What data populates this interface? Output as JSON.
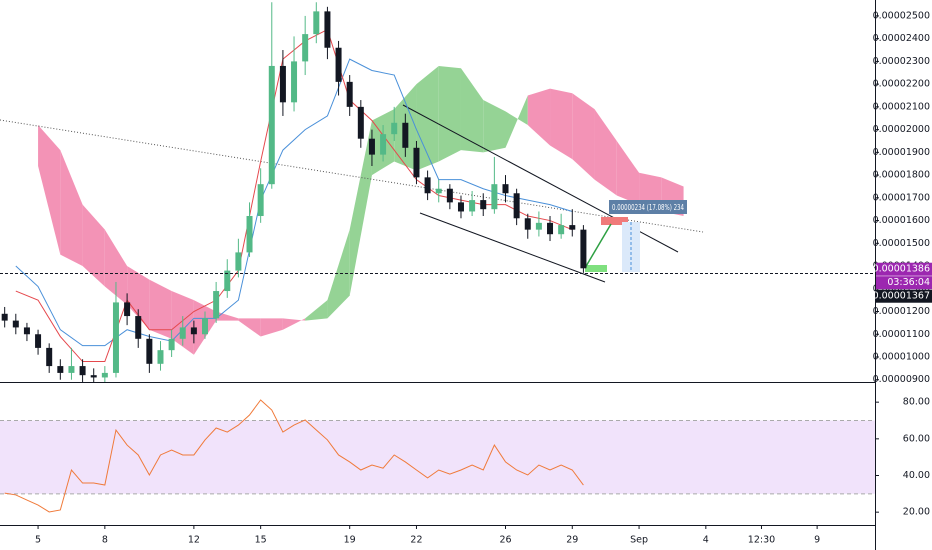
{
  "chart_data": [
    {
      "type": "candlestick",
      "xlim": [
        -1.71,
        37.6
      ],
      "ylim": [
        8.9e-06,
        2.57e-05
      ],
      "yticks": [
        {
          "value": 9e-06,
          "label": "0.00000900"
        },
        {
          "value": 1e-05,
          "label": "0.00001000"
        },
        {
          "value": 1.1e-05,
          "label": "0.00001100"
        },
        {
          "value": 1.2e-05,
          "label": "0.00001200"
        },
        {
          "value": 1.3e-05,
          "label": "0.00001300"
        },
        {
          "value": 1.4e-05,
          "label": "0.00001400"
        },
        {
          "value": 1.5e-05,
          "label": "0.00001500"
        },
        {
          "value": 1.6e-05,
          "label": "0.00001600"
        },
        {
          "value": 1.7e-05,
          "label": "0.00001700"
        },
        {
          "value": 1.8e-05,
          "label": "0.00001800"
        },
        {
          "value": 1.9e-05,
          "label": "0.00001900"
        },
        {
          "value": 2e-05,
          "label": "0.00002000"
        },
        {
          "value": 2.1e-05,
          "label": "0.00002100"
        },
        {
          "value": 2.2e-05,
          "label": "0.00002200"
        },
        {
          "value": 2.3e-05,
          "label": "0.00002300"
        },
        {
          "value": 2.4e-05,
          "label": "0.00002400"
        },
        {
          "value": 2.5e-05,
          "label": "0.00002500"
        }
      ],
      "grid": false,
      "up_color": "#53b987",
      "down_color": "#131722",
      "x": [
        -1.5,
        -1,
        -0.5,
        0,
        0.5,
        1,
        1.5,
        2,
        2.5,
        3,
        3.5,
        4,
        4.5,
        5,
        5.5,
        6,
        6.5,
        7,
        7.5,
        8,
        8.5,
        9,
        9.5,
        10,
        10.5,
        11,
        11.5,
        12,
        12.5,
        13,
        13.5,
        14,
        14.5,
        15,
        15.5,
        16,
        16.5,
        17,
        17.5,
        18,
        18.5,
        19,
        19.5,
        20,
        20.5,
        21,
        21.5,
        22,
        22.5,
        23,
        23.5,
        24,
        24.5
      ],
      "candles": [
        [
          1.19e-05,
          1.22e-05,
          1.13e-05,
          1.16e-05
        ],
        [
          1.16e-05,
          1.19e-05,
          1.1e-05,
          1.13e-05
        ],
        [
          1.13e-05,
          1.15e-05,
          1.07e-05,
          1.1e-05
        ],
        [
          1.1e-05,
          1.12e-05,
          1.01e-05,
          1.04e-05
        ],
        [
          1.04e-05,
          1.06e-05,
          9.3e-06,
          9.6e-06
        ],
        [
          9.6e-06,
          9.9e-06,
          9e-06,
          9.3e-06
        ],
        [
          9.3e-06,
          1.04e-05,
          9e-06,
          9.6e-06
        ],
        [
          9.6e-06,
          9.9e-06,
          8.9e-06,
          9.2e-06
        ],
        [
          9.2e-06,
          9.5e-06,
          8.9e-06,
          9.1e-06
        ],
        [
          9.1e-06,
          9.6e-06,
          8.9e-06,
          9.3e-06
        ],
        [
          9.3e-06,
          1.33e-05,
          9.1e-06,
          1.24e-05
        ],
        [
          1.24e-05,
          1.28e-05,
          1.14e-05,
          1.18e-05
        ],
        [
          1.18e-05,
          1.21e-05,
          1.04e-05,
          1.08e-05
        ],
        [
          1.08e-05,
          1.1e-05,
          9.3e-06,
          9.7e-06
        ],
        [
          9.7e-06,
          1.07e-05,
          9.4e-06,
          1.03e-05
        ],
        [
          1.03e-05,
          1.12e-05,
          1e-05,
          1.08e-05
        ],
        [
          1.08e-05,
          1.18e-05,
          1.05e-05,
          1.13e-05
        ],
        [
          1.13e-05,
          1.16e-05,
          1.06e-05,
          1.1e-05
        ],
        [
          1.1e-05,
          1.2e-05,
          1.08e-05,
          1.17e-05
        ],
        [
          1.17e-05,
          1.33e-05,
          1.15e-05,
          1.29e-05
        ],
        [
          1.29e-05,
          1.43e-05,
          1.26e-05,
          1.38e-05
        ],
        [
          1.38e-05,
          1.52e-05,
          1.35e-05,
          1.46e-05
        ],
        [
          1.46e-05,
          1.68e-05,
          1.44e-05,
          1.62e-05
        ],
        [
          1.62e-05,
          1.83e-05,
          1.59e-05,
          1.76e-05
        ],
        [
          1.76e-05,
          2.56e-05,
          1.74e-05,
          2.28e-05
        ],
        [
          2.28e-05,
          2.35e-05,
          2.06e-05,
          2.12e-05
        ],
        [
          2.12e-05,
          2.41e-05,
          2.08e-05,
          2.3e-05
        ],
        [
          2.3e-05,
          2.5e-05,
          2.24e-05,
          2.42e-05
        ],
        [
          2.42e-05,
          2.56e-05,
          2.38e-05,
          2.52e-05
        ],
        [
          2.52e-05,
          2.54e-05,
          2.31e-05,
          2.36e-05
        ],
        [
          2.36e-05,
          2.39e-05,
          2.15e-05,
          2.21e-05
        ],
        [
          2.21e-05,
          2.24e-05,
          2.06e-05,
          2.1e-05
        ],
        [
          2.1e-05,
          2.13e-05,
          1.92e-05,
          1.96e-05
        ],
        [
          1.96e-05,
          2e-05,
          1.84e-05,
          1.89e-05
        ],
        [
          1.89e-05,
          2.02e-05,
          1.86e-05,
          1.98e-05
        ],
        [
          1.98e-05,
          2.1e-05,
          1.95e-05,
          2.03e-05
        ],
        [
          2.03e-05,
          2.07e-05,
          1.88e-05,
          1.92e-05
        ],
        [
          1.92e-05,
          1.95e-05,
          1.76e-05,
          1.79e-05
        ],
        [
          1.79e-05,
          1.82e-05,
          1.69e-05,
          1.72e-05
        ],
        [
          1.72e-05,
          1.78e-05,
          1.68e-05,
          1.74e-05
        ],
        [
          1.74e-05,
          1.76e-05,
          1.65e-05,
          1.68e-05
        ],
        [
          1.68e-05,
          1.71e-05,
          1.61e-05,
          1.64e-05
        ],
        [
          1.64e-05,
          1.73e-05,
          1.62e-05,
          1.69e-05
        ],
        [
          1.69e-05,
          1.72e-05,
          1.62e-05,
          1.65e-05
        ],
        [
          1.65e-05,
          1.88e-05,
          1.63e-05,
          1.76e-05
        ],
        [
          1.76e-05,
          1.8e-05,
          1.68e-05,
          1.72e-05
        ],
        [
          1.72e-05,
          1.74e-05,
          1.58e-05,
          1.61e-05
        ],
        [
          1.61e-05,
          1.63e-05,
          1.52e-05,
          1.56e-05
        ],
        [
          1.56e-05,
          1.64e-05,
          1.53e-05,
          1.59e-05
        ],
        [
          1.59e-05,
          1.62e-05,
          1.51e-05,
          1.54e-05
        ],
        [
          1.54e-05,
          1.63e-05,
          1.52e-05,
          1.58e-05
        ],
        [
          1.58e-05,
          1.65e-05,
          1.53e-05,
          1.56e-05
        ],
        [
          1.56e-05,
          1.58e-05,
          1.37e-05,
          1.39e-05
        ]
      ],
      "cloud": {
        "x": [
          0,
          1,
          2,
          3,
          4,
          5,
          6,
          7,
          8,
          9,
          10,
          11,
          12,
          13,
          14,
          15,
          16,
          17,
          18,
          19,
          20,
          21,
          22,
          23,
          24,
          25,
          26,
          27,
          28,
          29
        ],
        "span_a": [
          1.84e-05,
          1.45e-05,
          1.4e-05,
          1.31e-05,
          1.23e-05,
          1.12e-05,
          1.08e-05,
          1.01e-05,
          1.16e-05,
          1.16e-05,
          1.09e-05,
          1.12e-05,
          1.17e-05,
          1.25e-05,
          1.56e-05,
          2.04e-05,
          2.09e-05,
          2.2e-05,
          2.28e-05,
          2.27e-05,
          2.13e-05,
          2.08e-05,
          2.02e-05,
          1.93e-05,
          1.87e-05,
          1.78e-05,
          1.71e-05,
          1.67e-05,
          1.64e-05,
          1.62e-05
        ],
        "span_b": [
          2.02e-05,
          1.91e-05,
          1.67e-05,
          1.56e-05,
          1.4e-05,
          1.34e-05,
          1.29e-05,
          1.25e-05,
          1.2e-05,
          1.17e-05,
          1.17e-05,
          1.17e-05,
          1.16e-05,
          1.17e-05,
          1.27e-05,
          1.8e-05,
          1.86e-05,
          1.82e-05,
          1.86e-05,
          1.91e-05,
          1.9e-05,
          1.92e-05,
          2.15e-05,
          2.18e-05,
          2.16e-05,
          2.09e-05,
          1.95e-05,
          1.81e-05,
          1.79e-05,
          1.75e-05
        ],
        "up_color": "#8fd18f",
        "down_color": "#f28db2"
      },
      "overlays": [
        {
          "color": "#4a90d9",
          "x": [
            -1,
            0,
            1,
            2,
            3,
            4,
            5,
            6,
            7,
            8,
            9,
            10,
            11,
            12,
            13,
            14,
            15,
            16,
            17,
            18,
            19,
            20,
            21,
            22,
            23,
            24
          ],
          "values": [
            1.4e-05,
            1.31e-05,
            1.12e-05,
            1.05e-05,
            1.05e-05,
            1.12e-05,
            1.09e-05,
            1.07e-05,
            1.17e-05,
            1.17e-05,
            1.25e-05,
            1.69e-05,
            1.91e-05,
            2e-05,
            2.06e-05,
            2.31e-05,
            2.26e-05,
            2.24e-05,
            2e-05,
            1.78e-05,
            1.78e-05,
            1.74e-05,
            1.71e-05,
            1.69e-05,
            1.67e-05,
            1.64e-05
          ]
        },
        {
          "color": "#e5484d",
          "x": [
            -1,
            0,
            1,
            2,
            3,
            4,
            5,
            6,
            7,
            8,
            9,
            10,
            11,
            12,
            13,
            14,
            15,
            16,
            17,
            18,
            19,
            20,
            21,
            22,
            23,
            24
          ],
          "values": [
            1.29e-05,
            1.25e-05,
            1.09e-05,
            9.8e-06,
            9.8e-06,
            1.25e-05,
            1.12e-05,
            1.12e-05,
            1.2e-05,
            1.25e-05,
            1.38e-05,
            1.86e-05,
            2.31e-05,
            2.39e-05,
            2.44e-05,
            2.13e-05,
            2.04e-05,
            1.91e-05,
            1.78e-05,
            1.71e-05,
            1.69e-05,
            1.67e-05,
            1.67e-05,
            1.62e-05,
            1.6e-05,
            1.56e-05
          ]
        }
      ],
      "price_labels": [
        {
          "value": 1.386e-05,
          "label": "0.00001386",
          "color": "#9c27b0"
        },
        {
          "value": 1.367e-05,
          "label": "0.00001367",
          "color": "#131722"
        }
      ],
      "countdown": "03:36:04",
      "measure_label": "0.00000234 (17.08%) 234"
    },
    {
      "type": "line",
      "xlim": [
        -1.71,
        37.6
      ],
      "ylim": [
        13,
        91
      ],
      "yticks": [
        {
          "value": 20,
          "label": "20.00"
        },
        {
          "value": 40,
          "label": "40.00"
        },
        {
          "value": 60,
          "label": "60.00"
        },
        {
          "value": 80,
          "label": "80.00"
        }
      ],
      "band": [
        30,
        70
      ],
      "band_color": "#f1e3fb",
      "color": "#f07a3a",
      "xticks": [
        {
          "value": 0,
          "label": "5"
        },
        {
          "value": 3,
          "label": "8"
        },
        {
          "value": 7,
          "label": "12"
        },
        {
          "value": 10,
          "label": "15"
        },
        {
          "value": 14,
          "label": "19"
        },
        {
          "value": 17,
          "label": "22"
        },
        {
          "value": 21,
          "label": "26"
        },
        {
          "value": 24,
          "label": "29"
        },
        {
          "value": 27,
          "label": "Sep"
        },
        {
          "value": 30,
          "label": "4"
        },
        {
          "value": 32.5,
          "label": "12:30"
        },
        {
          "value": 35,
          "label": "9"
        }
      ],
      "x": [
        -1.5,
        -1,
        -0.5,
        0,
        0.5,
        1,
        1.5,
        2,
        2.5,
        3,
        3.5,
        4,
        4.5,
        5,
        5.5,
        6,
        6.5,
        7,
        7.5,
        8,
        8.5,
        9,
        9.5,
        10,
        10.5,
        11,
        11.5,
        12,
        12.5,
        13,
        13.5,
        14,
        14.5,
        15,
        15.5,
        16,
        16.5,
        17,
        17.5,
        18,
        18.5,
        19,
        19.5,
        20,
        20.5,
        21,
        21.5,
        22,
        22.5,
        23,
        23.5,
        24,
        24.5
      ],
      "values": [
        30.4,
        29.4,
        26.6,
        23.9,
        20.1,
        21.2,
        43,
        35.9,
        35.9,
        34.8,
        64.8,
        56.6,
        51.2,
        40.3,
        51.2,
        53.9,
        51.2,
        51.2,
        59.4,
        65.9,
        63.7,
        67.5,
        73,
        81.2,
        75.7,
        63.7,
        67.5,
        70.3,
        64.8,
        59.4,
        51.2,
        47.4,
        43,
        45.7,
        44,
        51.2,
        47.4,
        43,
        38.7,
        43,
        40.8,
        43,
        45.7,
        43,
        56.6,
        47.4,
        43,
        40.3,
        45.7,
        43,
        45.7,
        43,
        34.8
      ]
    }
  ]
}
